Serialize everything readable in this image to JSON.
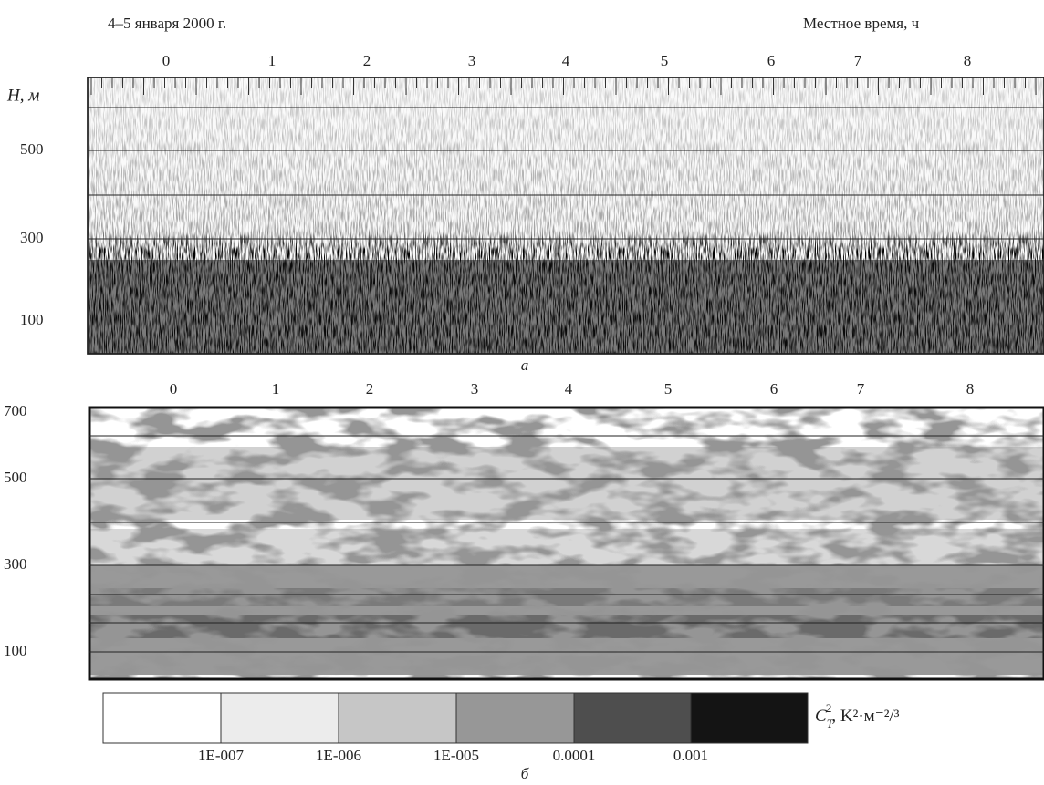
{
  "header": {
    "date": "4–5 января 2000 г.",
    "time_axis": "Местное время, ч"
  },
  "panel_a": {
    "y_axis_label": "H, м",
    "x_labels": [
      "0",
      "1",
      "2",
      "3",
      "4",
      "5",
      "6",
      "7",
      "8"
    ],
    "y_labels": [
      "500",
      "300",
      "100"
    ],
    "label": "а"
  },
  "panel_b": {
    "x_labels": [
      "0",
      "1",
      "2",
      "3",
      "4",
      "5",
      "6",
      "7",
      "8"
    ],
    "y_labels": [
      "700",
      "500",
      "300",
      "100"
    ],
    "label": "б"
  },
  "colorbar": {
    "symbol": "C",
    "subscript": "T",
    "superscript": "2",
    "units": ", K²·м⁻²/³",
    "tick_labels": [
      "1E-007",
      "1E-006",
      "1E-005",
      "0.0001",
      "0.001"
    ]
  }
}
